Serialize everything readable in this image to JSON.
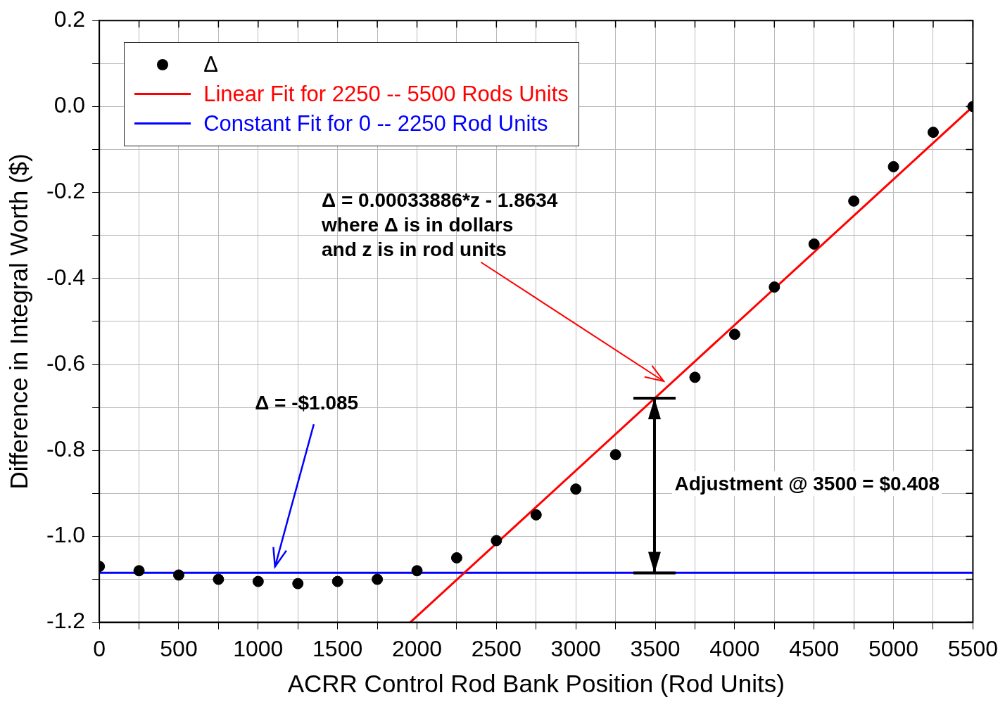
{
  "chart_data": {
    "type": "scatter",
    "xlabel": "ACRR Control Rod Bank Position (Rod Units)",
    "ylabel": "Difference in Integral Worth ($)",
    "xlim": [
      0,
      5500
    ],
    "ylim": [
      -1.2,
      0.2
    ],
    "xticks": [
      0,
      {
        "value": 250,
        "label": null
      },
      500,
      {
        "value": 750,
        "label": null
      },
      1000,
      {
        "value": 1250,
        "label": null
      },
      1500,
      {
        "value": 1750,
        "label": null
      },
      2000,
      {
        "value": 2250,
        "label": null
      },
      2500,
      {
        "value": 2750,
        "label": null
      },
      3000,
      {
        "value": 3250,
        "label": null
      },
      3500,
      {
        "value": 3750,
        "label": null
      },
      4000,
      {
        "value": 4250,
        "label": null
      },
      4500,
      {
        "value": 4750,
        "label": null
      },
      5000,
      {
        "value": 5250,
        "label": null
      },
      5500
    ],
    "yticks": [
      {
        "value": -1.2,
        "label": "-1.2"
      },
      {
        "value": -1.1,
        "label": null
      },
      {
        "value": -1.0,
        "label": "-1.0"
      },
      {
        "value": -0.9,
        "label": null
      },
      {
        "value": -0.8,
        "label": "-0.8"
      },
      {
        "value": -0.7,
        "label": null
      },
      {
        "value": -0.6,
        "label": "-0.6"
      },
      {
        "value": -0.5,
        "label": null
      },
      {
        "value": -0.4,
        "label": "-0.4"
      },
      {
        "value": -0.3,
        "label": null
      },
      {
        "value": -0.2,
        "label": "-0.2"
      },
      {
        "value": -0.1,
        "label": null
      },
      {
        "value": 0,
        "label": "0.0"
      },
      {
        "value": 0.1,
        "label": null
      },
      {
        "value": 0.2,
        "label": "0.2"
      }
    ],
    "grid": true,
    "legend": "top left",
    "series": [
      {
        "name": "Δ",
        "type": "scatter",
        "marker": "circle",
        "color": "#000000",
        "x": [
          0,
          250,
          500,
          750,
          1000,
          1250,
          1500,
          1750,
          2000,
          2250,
          2500,
          2750,
          3000,
          3250,
          3750,
          4000,
          4250,
          4500,
          4750,
          5000,
          5250,
          5500
        ],
        "values": [
          -1.07,
          -1.08,
          -1.09,
          -1.1,
          -1.105,
          -1.11,
          -1.105,
          -1.1,
          -1.08,
          -1.05,
          -1.01,
          -0.95,
          -0.89,
          -0.81,
          -0.63,
          -0.53,
          -0.42,
          -0.32,
          -0.22,
          -0.14,
          -0.06,
          0
        ]
      },
      {
        "name": "Linear Fit for 2250 -- 5500 Rods Units",
        "type": "line",
        "marker": "none",
        "color": "#ff0000",
        "x": [
          1958,
          5500
        ],
        "values": [
          -1.2,
          0
        ]
      },
      {
        "name": "Constant Fit for 0 -- 2250 Rod Units",
        "type": "line",
        "marker": "none",
        "color": "#0000ff",
        "x": [
          0,
          5500
        ],
        "values": [
          -1.085,
          -1.085
        ]
      }
    ],
    "annotations": [
      "Δ = 0.00033886*z - 1.8634\nwhere Δ is in dollars\nand z is in rod units",
      "Δ = -$1.085",
      "Adjustment @ 3500 = $0.408"
    ]
  }
}
